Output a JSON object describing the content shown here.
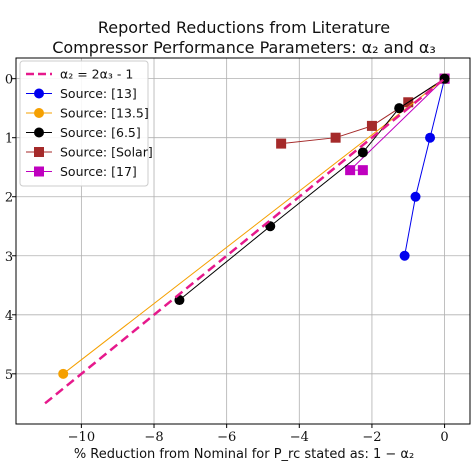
{
  "chart_data": {
    "type": "line",
    "title_line1": "Reported Reductions from Literature",
    "title_line2": "Compressor Performance Parameters: α₂ and α₃",
    "xlabel": "% Reduction from Nominal for P_rc stated as:  1 − α₂",
    "ylabel": "",
    "xlim": [
      -11.8,
      0.7
    ],
    "ylim": [
      5.85,
      -0.35
    ],
    "y_inverted": true,
    "x_ticks": [
      -10,
      -8,
      -6,
      -4,
      -2,
      0
    ],
    "x_tick_labels": [
      "−10",
      "−8",
      "−6",
      "−4",
      "−2",
      "0"
    ],
    "y_ticks": [
      0,
      1,
      2,
      3,
      4,
      5
    ],
    "y_tick_labels": [
      "0",
      "1",
      "2",
      "3",
      "4",
      "5"
    ],
    "y_axis_side": "right",
    "grid": true,
    "legend_position": "upper-left",
    "series": [
      {
        "name": "α₂ = 2α₃ - 1",
        "kind": "dashed-line",
        "color": "#e6198c",
        "x": [
          -11,
          0
        ],
        "y": [
          5.5,
          0
        ]
      },
      {
        "name": "Source: [13]",
        "marker": "circle",
        "color": "#0000ee",
        "x": [
          0,
          -0.4,
          -0.8,
          -1.1
        ],
        "y": [
          0,
          1,
          2,
          3
        ]
      },
      {
        "name": "Source: [13.5]",
        "marker": "circle",
        "color": "#f5a000",
        "x": [
          0,
          -10.5
        ],
        "y": [
          0,
          5
        ]
      },
      {
        "name": "Source: [6.5]",
        "marker": "circle",
        "color": "#000000",
        "x": [
          0,
          -1.25,
          -2.25,
          -4.8,
          -7.3
        ],
        "y": [
          0,
          0.5,
          1.25,
          2.5,
          3.75
        ]
      },
      {
        "name": "Source: [Solar]",
        "marker": "square",
        "color": "#a52a2a",
        "x": [
          0,
          -1,
          -2,
          -3,
          -4.5
        ],
        "y": [
          0,
          0.4,
          0.8,
          1,
          1.1
        ]
      },
      {
        "name": "Source: [17]",
        "marker": "square",
        "color": "#bf00bf",
        "x": [
          0,
          -2.6,
          -2.25
        ],
        "y": [
          0,
          1.55,
          1.55
        ]
      }
    ]
  }
}
